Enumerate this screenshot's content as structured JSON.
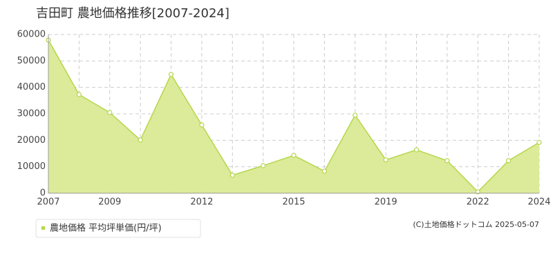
{
  "chart_data": {
    "type": "area",
    "title": "吉田町 農地価格推移[2007-2024]",
    "categories": [
      "2007",
      null,
      "2009",
      null,
      null,
      "2012",
      null,
      null,
      "2015",
      null,
      null,
      "2019",
      null,
      null,
      "2022",
      null,
      "2024"
    ],
    "series": [
      {
        "name": "農地価格 平均坪単価(円/坪)",
        "color": "#b5d64a",
        "values": [
          57900,
          37300,
          30500,
          20100,
          44900,
          25800,
          6800,
          10400,
          14300,
          8300,
          29500,
          12600,
          16400,
          12300,
          500,
          12300,
          19200
        ]
      }
    ],
    "ylim": [
      0,
      60000
    ],
    "yticks": [
      0,
      10000,
      20000,
      30000,
      40000,
      50000,
      60000
    ],
    "grid": true,
    "credit": "(C)土地価格ドットコム 2025-05-07"
  }
}
